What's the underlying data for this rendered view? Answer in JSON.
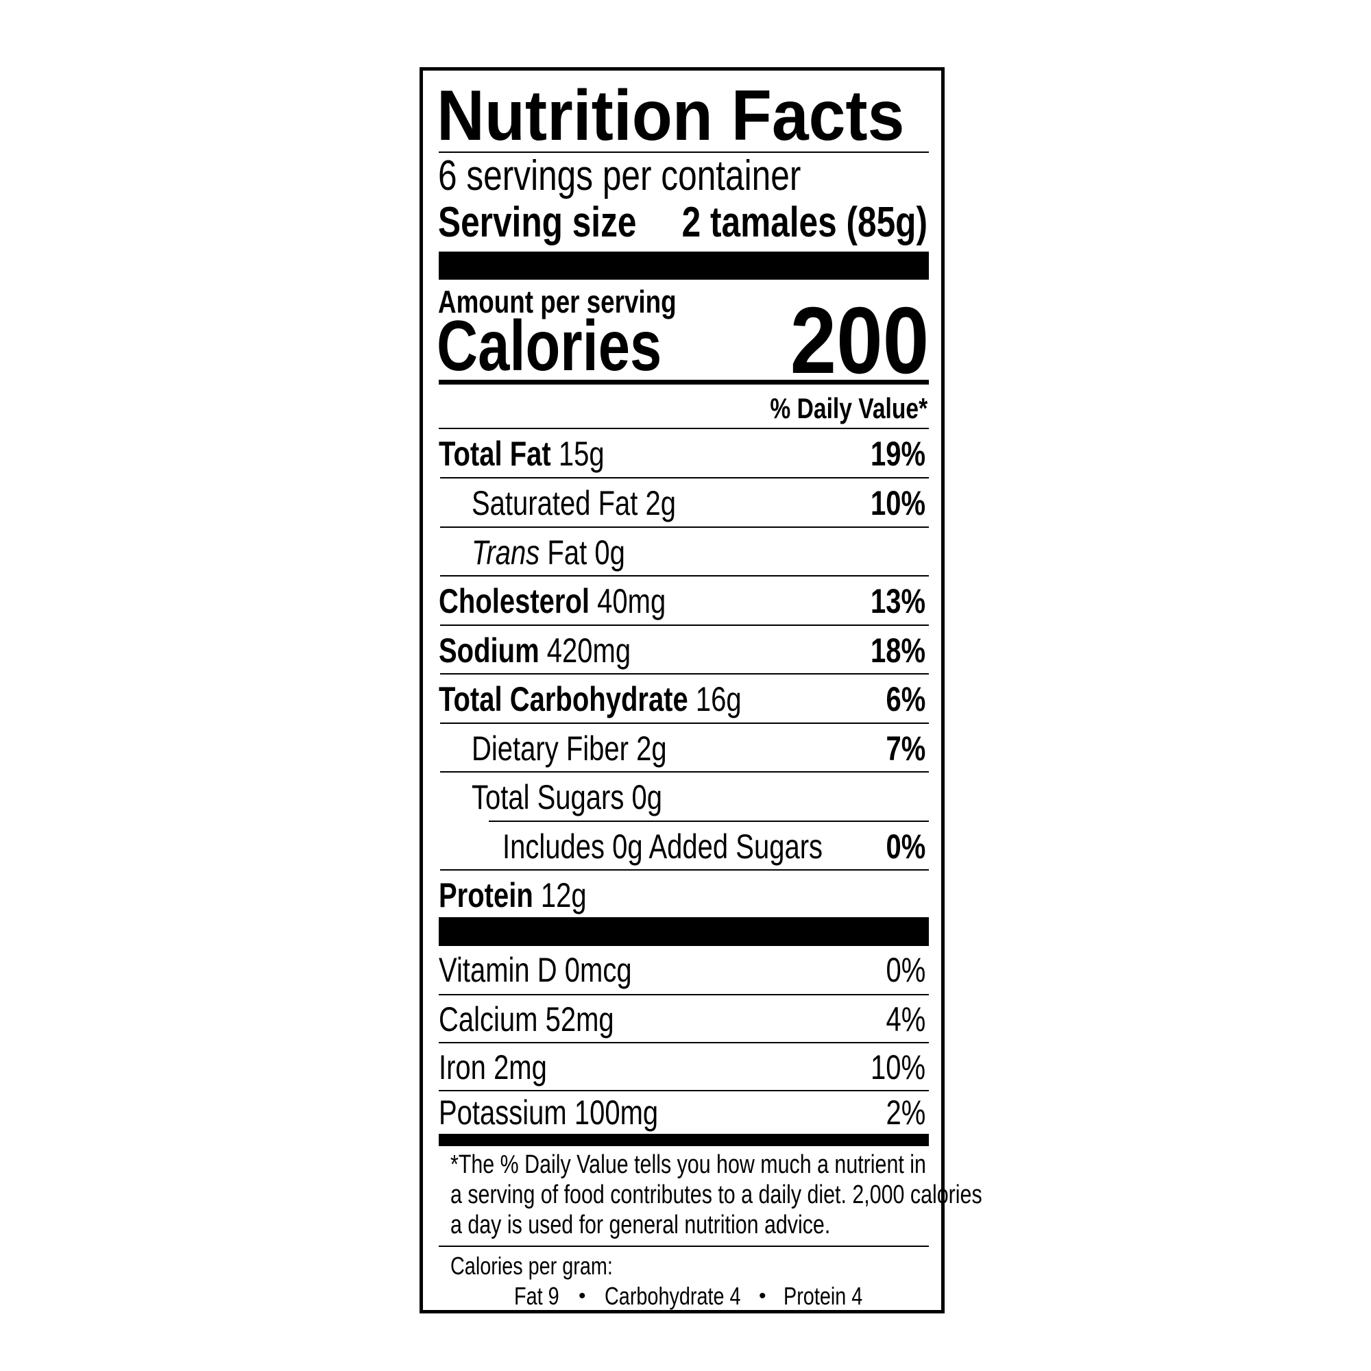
{
  "title": "Nutrition Facts",
  "servings_per_container": "6 servings per container",
  "serving_size_label": "Serving size",
  "serving_size_value": "2 tamales (85g)",
  "amount_per_serving": "Amount per serving",
  "calories_label": "Calories",
  "calories_value": "200",
  "daily_value_header": "% Daily Value*",
  "nutrients": [
    {
      "name": "Total Fat",
      "amount": "15g",
      "dv": "19%"
    },
    {
      "name": "Saturated Fat",
      "amount": "2g",
      "dv": "10%"
    },
    {
      "name_italic": "Trans",
      "name": "Fat",
      "amount": "0g",
      "dv": ""
    },
    {
      "name": "Cholesterol",
      "amount": "40mg",
      "dv": "13%"
    },
    {
      "name": "Sodium",
      "amount": "420mg",
      "dv": "18%"
    },
    {
      "name": "Total Carbohydrate",
      "amount": "16g",
      "dv": "6%"
    },
    {
      "name": "Dietary Fiber",
      "amount": "2g",
      "dv": "7%"
    },
    {
      "name": "Total Sugars",
      "amount": "0g",
      "dv": ""
    },
    {
      "name": "Includes 0g Added Sugars",
      "amount": "",
      "dv": "0%"
    },
    {
      "name": "Protein",
      "amount": "12g",
      "dv": ""
    }
  ],
  "vitamins": [
    {
      "name": "Vitamin D",
      "amount": "0mcg",
      "dv": "0%"
    },
    {
      "name": "Calcium",
      "amount": "52mg",
      "dv": "4%"
    },
    {
      "name": "Iron",
      "amount": "2mg",
      "dv": "10%"
    },
    {
      "name": "Potassium",
      "amount": "100mg",
      "dv": "2%"
    }
  ],
  "footnote": [
    "*The % Daily Value tells you how much a nutrient in",
    "a serving of food contributes to a daily diet. 2,000 calories",
    "a day is used for general nutrition advice."
  ],
  "calories_per_gram": {
    "label": "Calories per gram:",
    "fat": "Fat 9",
    "carbohydrate": "Carbohydrate 4",
    "protein": "Protein 4",
    "separator": "•"
  }
}
